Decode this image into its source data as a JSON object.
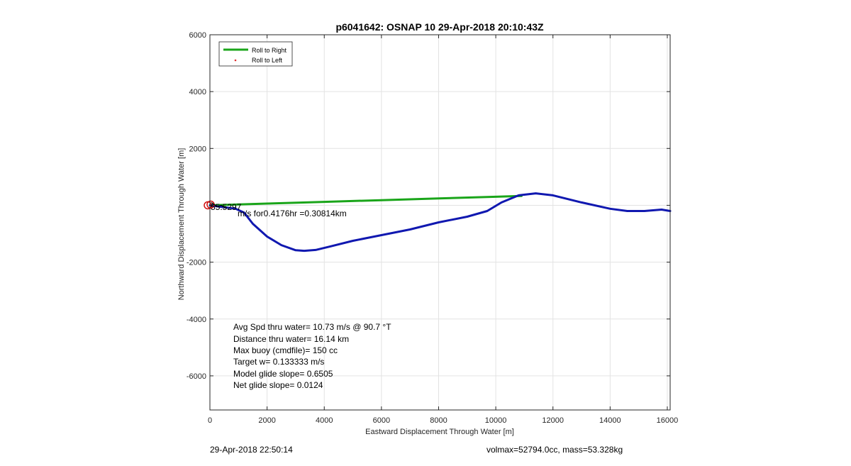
{
  "chart_data": {
    "type": "line",
    "title": "p6041642: OSNAP 10 29-Apr-2018 20:10:43Z",
    "xlabel": "Eastward Displacement Through Water [m]",
    "ylabel": "Northward Displacement Through Water [m]",
    "xlim": [
      0,
      16100
    ],
    "ylim": [
      -7200,
      6000
    ],
    "xticks": [
      0,
      2000,
      4000,
      6000,
      8000,
      10000,
      12000,
      14000,
      16000
    ],
    "yticks": [
      -6000,
      -4000,
      -2000,
      2000,
      4000,
      6000
    ],
    "grid": true,
    "legend": {
      "position": "top-left",
      "entries": [
        "Roll to Right",
        "Roll to Left"
      ]
    },
    "series": [
      {
        "name": "Roll to Right",
        "color": "#1aa51a",
        "x": [
          0,
          2000,
          4000,
          6000,
          8000,
          10000,
          10900
        ],
        "y": [
          0,
          60,
          120,
          180,
          240,
          300,
          330
        ]
      },
      {
        "name": "Roll to Left",
        "color": "#e03030",
        "x": [],
        "y": []
      },
      {
        "name": "",
        "color": "#1018b0",
        "x": [
          0,
          300,
          600,
          900,
          1200,
          1500,
          2000,
          2500,
          3000,
          3300,
          3700,
          4200,
          5000,
          6000,
          7000,
          8000,
          9000,
          9700,
          10200,
          10800,
          11400,
          12000,
          13000,
          14000,
          14600,
          15200,
          15800,
          16100
        ],
        "y": [
          0,
          -40,
          -80,
          -120,
          -260,
          -650,
          -1100,
          -1400,
          -1580,
          -1600,
          -1570,
          -1450,
          -1250,
          -1050,
          -850,
          -600,
          -400,
          -200,
          100,
          350,
          420,
          350,
          100,
          -120,
          -200,
          -200,
          -150,
          -200
        ]
      }
    ],
    "start_marker": {
      "x": 0,
      "y": 0,
      "color": "#d01010"
    },
    "annotations": {
      "segment_label": "m/s for0.4176hr =0.30814km",
      "overlap_label": "55.5297",
      "stats": [
        "Avg Spd thru water= 10.73 m/s @  90.7 °T",
        "Distance thru water= 16.14 km",
        "Max buoy (cmdfile)= 150 cc",
        "Target w= 0.133333 m/s",
        "Model glide slope= 0.6505",
        "Net glide slope= 0.0124"
      ]
    },
    "footer_left": "29-Apr-2018 22:50:14",
    "footer_right": "volmax=52794.0cc, mass=53.328kg"
  }
}
